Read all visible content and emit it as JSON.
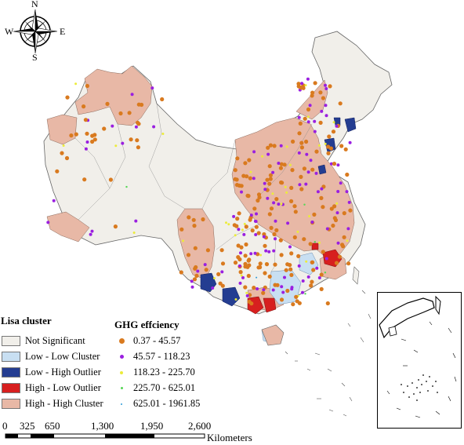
{
  "compass": {
    "n": "N",
    "s": "S",
    "e": "E",
    "w": "W"
  },
  "legend": {
    "lisa_title": "Lisa cluster",
    "lisa_items": [
      {
        "label": "Not Significant",
        "color": "#f1efea"
      },
      {
        "label": "Low - Low Cluster",
        "color": "#c8dff2"
      },
      {
        "label": "Low - High Outlier",
        "color": "#243d91"
      },
      {
        "label": "High - Low Outlier",
        "color": "#d71f1f"
      },
      {
        "label": "High - High Cluster",
        "color": "#e8b8a6"
      }
    ],
    "ghg_title": "GHG effciency",
    "ghg_items": [
      {
        "label": "0.37 - 45.57",
        "color": "#d97a1f"
      },
      {
        "label": "45.57 - 118.23",
        "color": "#9a1fe0"
      },
      {
        "label": "118.23 - 225.70",
        "color": "#ecec3a"
      },
      {
        "label": "225.70 - 625.01",
        "color": "#55d655"
      },
      {
        "label": "625.01 - 1961.85",
        "color": "#2f9bd8"
      }
    ]
  },
  "scale": {
    "ticks": [
      "0",
      "325",
      "650",
      "1,300",
      "1,950",
      "2,600"
    ],
    "unit": "Kilometers"
  }
}
